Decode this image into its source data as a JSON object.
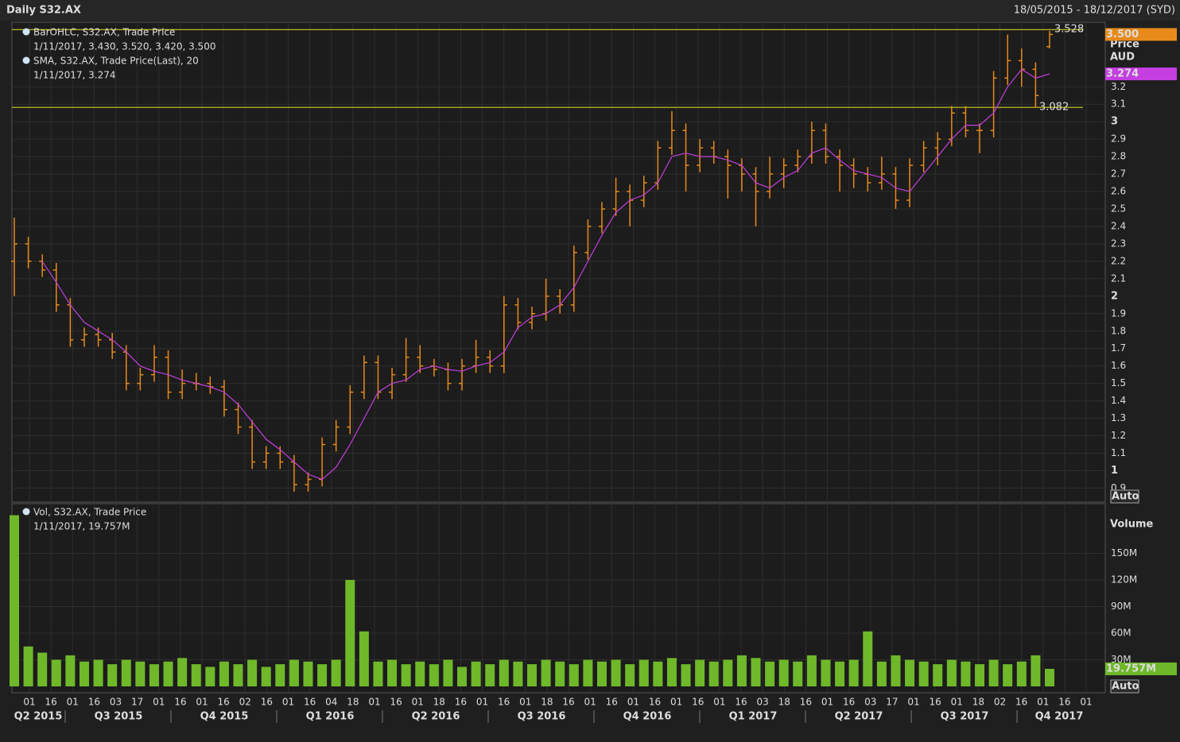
{
  "header": {
    "title": "Daily S32.AX",
    "range": "18/05/2015 - 18/12/2017 (SYD)"
  },
  "chart_data": [
    {
      "type": "ohlc",
      "ylim": [
        0.82,
        3.57
      ],
      "axis_title": "Price",
      "axis_unit": "AUD",
      "scale_button": "Auto",
      "grid": true,
      "yticks": [
        0.9,
        1,
        1.1,
        1.2,
        1.3,
        1.4,
        1.5,
        1.6,
        1.7,
        1.8,
        1.9,
        2,
        2.1,
        2.2,
        2.3,
        2.4,
        2.5,
        2.6,
        2.7,
        2.8,
        2.9,
        3,
        3.1,
        3.2
      ],
      "hlines": [
        {
          "value": 3.528,
          "label": "3.528"
        },
        {
          "value": 3.082,
          "label": "3.082"
        }
      ],
      "series": [
        {
          "name": "BarOHLC, S32.AX, Trade Price",
          "detail": "1/11/2017, 3.430, 3.520, 3.420, 3.500",
          "color": "#e88a1a",
          "last_label": "3.500",
          "open": [
            2.2,
            2.3,
            2.2,
            2.15,
            1.95,
            1.75,
            1.78,
            1.75,
            1.68,
            1.5,
            1.55,
            1.65,
            1.45,
            1.5,
            1.5,
            1.48,
            1.35,
            1.25,
            1.05,
            1.1,
            1.05,
            0.92,
            0.95,
            1.15,
            1.25,
            1.45,
            1.62,
            1.45,
            1.55,
            1.65,
            1.6,
            1.58,
            1.5,
            1.6,
            1.65,
            1.6,
            1.95,
            1.85,
            1.9,
            2.0,
            1.95,
            2.25,
            2.4,
            2.5,
            2.6,
            2.55,
            2.65,
            2.85,
            2.95,
            2.75,
            2.85,
            2.8,
            2.75,
            2.7,
            2.6,
            2.7,
            2.75,
            2.8,
            2.95,
            2.8,
            2.75,
            2.7,
            2.65,
            2.7,
            2.55,
            2.75,
            2.85,
            2.9,
            3.05,
            2.95,
            2.95,
            3.25,
            3.35,
            3.3,
            3.43
          ],
          "high": [
            2.45,
            2.34,
            2.24,
            2.19,
            1.99,
            1.82,
            1.82,
            1.79,
            1.72,
            1.59,
            1.72,
            1.69,
            1.58,
            1.56,
            1.54,
            1.52,
            1.39,
            1.29,
            1.14,
            1.14,
            1.09,
            0.99,
            1.19,
            1.29,
            1.49,
            1.66,
            1.66,
            1.59,
            1.76,
            1.72,
            1.64,
            1.62,
            1.64,
            1.75,
            1.69,
            2.0,
            1.99,
            1.94,
            2.1,
            2.04,
            2.29,
            2.44,
            2.54,
            2.68,
            2.64,
            2.69,
            2.89,
            3.06,
            2.99,
            2.9,
            2.89,
            2.84,
            2.79,
            2.74,
            2.8,
            2.79,
            2.84,
            3.0,
            2.99,
            2.84,
            2.79,
            2.74,
            2.8,
            2.74,
            2.79,
            2.89,
            2.94,
            3.09,
            3.09,
            2.99,
            3.29,
            3.5,
            3.42,
            3.34,
            3.52
          ],
          "low": [
            2.0,
            2.16,
            2.11,
            1.91,
            1.71,
            1.71,
            1.71,
            1.64,
            1.46,
            1.46,
            1.51,
            1.41,
            1.41,
            1.46,
            1.44,
            1.31,
            1.21,
            1.01,
            1.01,
            1.01,
            0.88,
            0.88,
            0.91,
            1.11,
            1.21,
            1.41,
            1.41,
            1.41,
            1.51,
            1.56,
            1.54,
            1.46,
            1.46,
            1.56,
            1.56,
            1.56,
            1.81,
            1.81,
            1.86,
            1.9,
            1.91,
            2.21,
            2.36,
            2.46,
            2.4,
            2.51,
            2.61,
            2.81,
            2.6,
            2.71,
            2.76,
            2.56,
            2.6,
            2.4,
            2.56,
            2.62,
            2.71,
            2.76,
            2.76,
            2.6,
            2.62,
            2.6,
            2.61,
            2.5,
            2.51,
            2.71,
            2.75,
            2.86,
            2.91,
            2.82,
            2.91,
            3.21,
            3.2,
            3.08,
            3.42
          ],
          "close": [
            2.3,
            2.2,
            2.15,
            1.95,
            1.75,
            1.78,
            1.75,
            1.68,
            1.5,
            1.55,
            1.65,
            1.45,
            1.5,
            1.5,
            1.48,
            1.35,
            1.25,
            1.05,
            1.1,
            1.05,
            0.92,
            0.95,
            1.15,
            1.25,
            1.45,
            1.62,
            1.45,
            1.55,
            1.65,
            1.6,
            1.58,
            1.5,
            1.6,
            1.65,
            1.6,
            1.95,
            1.85,
            1.9,
            2.0,
            1.95,
            2.25,
            2.4,
            2.5,
            2.6,
            2.55,
            2.65,
            2.85,
            2.95,
            2.75,
            2.85,
            2.8,
            2.75,
            2.7,
            2.6,
            2.7,
            2.75,
            2.8,
            2.95,
            2.8,
            2.75,
            2.7,
            2.65,
            2.7,
            2.55,
            2.75,
            2.85,
            2.9,
            3.05,
            2.95,
            2.95,
            3.25,
            3.35,
            3.3,
            3.15,
            3.5
          ]
        },
        {
          "name": "SMA, S32.AX, Trade Price(Last),  20",
          "detail": "1/11/2017, 3.274",
          "color": "#c43ee0",
          "last_label": "3.274",
          "values": [
            null,
            null,
            2.2,
            2.08,
            1.95,
            1.85,
            1.8,
            1.75,
            1.68,
            1.6,
            1.57,
            1.55,
            1.52,
            1.5,
            1.48,
            1.45,
            1.38,
            1.28,
            1.18,
            1.12,
            1.05,
            0.98,
            0.95,
            1.02,
            1.15,
            1.3,
            1.45,
            1.5,
            1.52,
            1.58,
            1.6,
            1.58,
            1.57,
            1.6,
            1.62,
            1.68,
            1.82,
            1.88,
            1.9,
            1.95,
            2.05,
            2.2,
            2.35,
            2.48,
            2.55,
            2.58,
            2.65,
            2.8,
            2.82,
            2.8,
            2.8,
            2.78,
            2.75,
            2.65,
            2.62,
            2.68,
            2.72,
            2.82,
            2.85,
            2.78,
            2.72,
            2.7,
            2.68,
            2.62,
            2.6,
            2.7,
            2.8,
            2.9,
            2.98,
            2.98,
            3.05,
            3.2,
            3.3,
            3.25,
            3.274
          ]
        }
      ]
    },
    {
      "type": "bar",
      "ylim": [
        0,
        206
      ],
      "axis_title": "Volume",
      "scale_button": "Auto",
      "grid": true,
      "yticks": [
        {
          "value": 30,
          "label": "30M"
        },
        {
          "value": 60,
          "label": "60M"
        },
        {
          "value": 90,
          "label": "90M"
        },
        {
          "value": 120,
          "label": "120M"
        },
        {
          "value": 150,
          "label": "150M"
        }
      ],
      "series": [
        {
          "name": "Vol, S32.AX, Trade Price",
          "detail": "1/11/2017, 19.757M",
          "color": "#6fb82a",
          "last_label": "19.757M",
          "values": [
            193,
            45,
            38,
            30,
            35,
            28,
            30,
            25,
            30,
            28,
            25,
            28,
            32,
            25,
            22,
            28,
            25,
            30,
            22,
            25,
            30,
            28,
            25,
            30,
            120,
            62,
            28,
            30,
            25,
            28,
            25,
            30,
            22,
            28,
            25,
            30,
            28,
            25,
            30,
            28,
            25,
            30,
            28,
            30,
            25,
            30,
            28,
            32,
            25,
            30,
            28,
            30,
            35,
            32,
            28,
            30,
            28,
            35,
            30,
            28,
            30,
            62,
            28,
            35,
            30,
            28,
            25,
            30,
            28,
            25,
            30,
            25,
            28,
            35,
            19.757
          ]
        }
      ],
      "x_tick_labels": [
        "01",
        "16",
        "01",
        "16",
        "03",
        "17",
        "01",
        "16",
        "01",
        "16",
        "02",
        "16",
        "01",
        "16",
        "04",
        "18",
        "01",
        "16",
        "01",
        "18",
        "16",
        "01",
        "16",
        "01",
        "18",
        "16",
        "01",
        "16",
        "01",
        "16",
        "01",
        "16",
        "01",
        "16",
        "03",
        "18",
        "16",
        "01",
        "16",
        "03",
        "17",
        "01",
        "16",
        "01",
        "18",
        "02",
        "16",
        "01",
        "16",
        "01"
      ],
      "quarters": [
        "Q2 2015",
        "Q3 2015",
        "Q4 2015",
        "Q1 2016",
        "Q2 2016",
        "Q3 2016",
        "Q4 2016",
        "Q1 2017",
        "Q2 2017",
        "Q3 2017",
        "Q4 2017"
      ]
    }
  ]
}
